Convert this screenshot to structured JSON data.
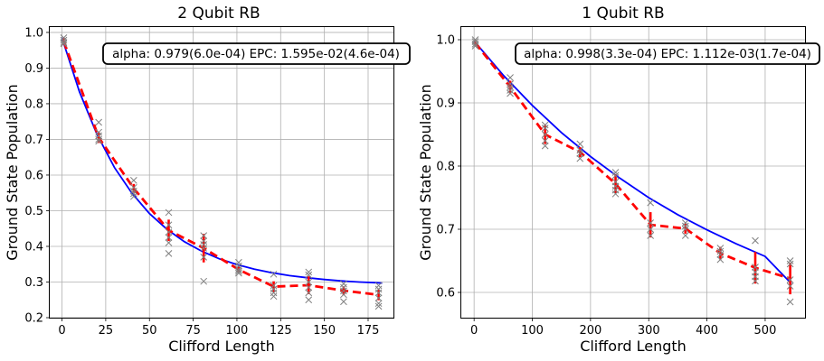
{
  "chart_data": [
    {
      "type": "scatter",
      "title": "2 Qubit RB",
      "xlabel": "Clifford Length",
      "ylabel": "Ground State Population",
      "xlim": [
        -7,
        190
      ],
      "ylim": [
        0.2,
        1.015
      ],
      "xticks": [
        0,
        25,
        50,
        75,
        100,
        125,
        150,
        175
      ],
      "xtick_labels": [
        "0",
        "25",
        "50",
        "75",
        "100",
        "125",
        "150",
        "175"
      ],
      "yticks": [
        0.2,
        0.3,
        0.4,
        0.5,
        0.6,
        0.7,
        0.8,
        0.9,
        1.0
      ],
      "ytick_labels": [
        "0.2",
        "0.3",
        "0.4",
        "0.5",
        "0.6",
        "0.7",
        "0.8",
        "0.9",
        "1.0"
      ],
      "grid": true,
      "annotation": "alpha: 0.979(6.0e-04) EPC: 1.595e-02(4.6e-04)",
      "samples": [
        {
          "x": 1,
          "y": [
            0.985,
            0.978,
            0.972,
            0.968
          ]
        },
        {
          "x": 21,
          "y": [
            0.748,
            0.72,
            0.71,
            0.7,
            0.695
          ]
        },
        {
          "x": 41,
          "y": [
            0.585,
            0.565,
            0.555,
            0.548,
            0.54
          ]
        },
        {
          "x": 61,
          "y": [
            0.495,
            0.46,
            0.44,
            0.425,
            0.41,
            0.38
          ]
        },
        {
          "x": 81,
          "y": [
            0.43,
            0.415,
            0.405,
            0.395,
            0.37,
            0.302
          ]
        },
        {
          "x": 101,
          "y": [
            0.355,
            0.345,
            0.335,
            0.33,
            0.325
          ]
        },
        {
          "x": 121,
          "y": [
            0.322,
            0.29,
            0.28,
            0.27,
            0.26
          ]
        },
        {
          "x": 141,
          "y": [
            0.328,
            0.32,
            0.3,
            0.285,
            0.27,
            0.25
          ]
        },
        {
          "x": 161,
          "y": [
            0.295,
            0.285,
            0.275,
            0.265,
            0.245
          ]
        },
        {
          "x": 181,
          "y": [
            0.29,
            0.28,
            0.27,
            0.255,
            0.24,
            0.232
          ]
        }
      ],
      "mean": {
        "x": [
          1,
          21,
          41,
          61,
          81,
          101,
          121,
          141,
          161,
          181
        ],
        "y": [
          0.975,
          0.705,
          0.563,
          0.445,
          0.395,
          0.335,
          0.287,
          0.291,
          0.276,
          0.264
        ],
        "err": [
          0.01,
          0.015,
          0.012,
          0.03,
          0.04,
          0.008,
          0.015,
          0.025,
          0.012,
          0.015
        ]
      },
      "fit": {
        "x": [
          0,
          10,
          20,
          30,
          40,
          50,
          60,
          70,
          80,
          90,
          100,
          110,
          120,
          130,
          140,
          150,
          160,
          170,
          180,
          183
        ],
        "y": [
          0.985,
          0.833,
          0.714,
          0.621,
          0.549,
          0.492,
          0.448,
          0.413,
          0.386,
          0.365,
          0.349,
          0.336,
          0.326,
          0.318,
          0.312,
          0.307,
          0.303,
          0.3,
          0.298,
          0.297
        ]
      }
    },
    {
      "type": "scatter",
      "title": "1 Qubit RB",
      "xlabel": "Clifford Length",
      "ylabel": "Ground State Population",
      "xlim": [
        -22,
        570
      ],
      "ylim": [
        0.56,
        1.02
      ],
      "xticks": [
        0,
        100,
        200,
        300,
        400,
        500
      ],
      "xtick_labels": [
        "0",
        "100",
        "200",
        "300",
        "400",
        "500"
      ],
      "yticks": [
        0.6,
        0.7,
        0.8,
        0.9,
        1.0
      ],
      "ytick_labels": [
        "0.6",
        "0.7",
        "0.8",
        "0.9",
        "1.0"
      ],
      "grid": true,
      "annotation": "alpha: 0.998(3.3e-04) EPC: 1.112e-03(1.7e-04)",
      "samples": [
        {
          "x": 2,
          "y": [
            1.0,
            0.997,
            0.993,
            0.99
          ]
        },
        {
          "x": 62,
          "y": [
            0.94,
            0.93,
            0.925,
            0.92,
            0.915
          ]
        },
        {
          "x": 122,
          "y": [
            0.865,
            0.86,
            0.85,
            0.84,
            0.832
          ]
        },
        {
          "x": 182,
          "y": [
            0.835,
            0.825,
            0.82,
            0.812
          ]
        },
        {
          "x": 243,
          "y": [
            0.79,
            0.785,
            0.775,
            0.768,
            0.762,
            0.756
          ]
        },
        {
          "x": 303,
          "y": [
            0.742,
            0.71,
            0.7,
            0.69
          ]
        },
        {
          "x": 363,
          "y": [
            0.71,
            0.705,
            0.7,
            0.69
          ]
        },
        {
          "x": 423,
          "y": [
            0.67,
            0.665,
            0.66,
            0.652
          ]
        },
        {
          "x": 483,
          "y": [
            0.682,
            0.64,
            0.632,
            0.625,
            0.618
          ]
        },
        {
          "x": 543,
          "y": [
            0.65,
            0.645,
            0.62,
            0.61,
            0.585
          ]
        }
      ],
      "mean": {
        "x": [
          2,
          62,
          122,
          182,
          243,
          303,
          363,
          423,
          483,
          543
        ],
        "y": [
          0.995,
          0.925,
          0.85,
          0.822,
          0.772,
          0.707,
          0.701,
          0.662,
          0.639,
          0.622
        ],
        "err": [
          0.004,
          0.01,
          0.015,
          0.008,
          0.015,
          0.02,
          0.008,
          0.01,
          0.025,
          0.025
        ]
      },
      "fit": {
        "x": [
          0,
          50,
          100,
          150,
          200,
          250,
          300,
          350,
          400,
          450,
          500,
          545
        ],
        "y": [
          0.998,
          0.944,
          0.896,
          0.853,
          0.815,
          0.781,
          0.75,
          0.723,
          0.699,
          0.677,
          0.657,
          0.614
        ]
      }
    }
  ]
}
